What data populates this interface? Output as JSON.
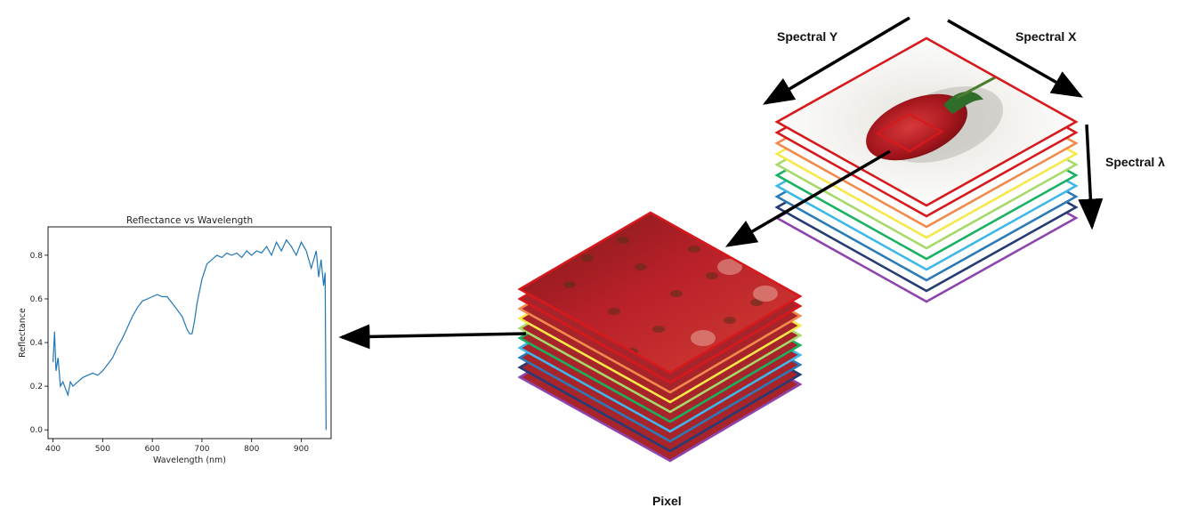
{
  "labels": {
    "spectral_y": "Spectral Y",
    "spectral_x": "Spectral X",
    "spectral_lambda": "Spectral λ",
    "pixel": "Pixel"
  },
  "colors": {
    "band_layers": [
      "#d7191c",
      "#d7191c",
      "#f28a4b",
      "#f7e84a",
      "#a6d96a",
      "#1ab163",
      "#3fb7e8",
      "#2c7bb6",
      "#253b73",
      "#8e44ad"
    ],
    "arrow": "#000000",
    "plot_line": "#1f77b4"
  },
  "chart_data": {
    "type": "line",
    "title": "Reflectance vs Wavelength",
    "xlabel": "Wavelength (nm)",
    "ylabel": "Reflectance",
    "xlim": [
      390,
      960
    ],
    "ylim": [
      -0.04,
      0.93
    ],
    "xticks": [
      400,
      500,
      600,
      700,
      800,
      900
    ],
    "yticks": [
      0.0,
      0.2,
      0.4,
      0.6,
      0.8
    ],
    "ytick_labels": [
      "0.0",
      "0.2",
      "0.4",
      "0.6",
      "0.8"
    ],
    "series": [
      {
        "x": [
          400,
          403,
          406,
          410,
          415,
          420,
          425,
          430,
          435,
          440,
          450,
          460,
          470,
          480,
          490,
          500,
          510,
          520,
          530,
          540,
          550,
          560,
          570,
          580,
          590,
          600,
          610,
          620,
          630,
          640,
          650,
          660,
          670,
          675,
          680,
          685,
          690,
          700,
          710,
          720,
          730,
          740,
          750,
          760,
          770,
          780,
          790,
          800,
          810,
          820,
          830,
          840,
          850,
          860,
          870,
          880,
          890,
          900,
          910,
          920,
          930,
          935,
          940,
          945,
          948,
          950
        ],
        "y": [
          0.31,
          0.45,
          0.27,
          0.33,
          0.2,
          0.22,
          0.19,
          0.16,
          0.22,
          0.2,
          0.22,
          0.24,
          0.25,
          0.26,
          0.25,
          0.27,
          0.3,
          0.33,
          0.38,
          0.42,
          0.47,
          0.52,
          0.56,
          0.59,
          0.6,
          0.61,
          0.62,
          0.61,
          0.61,
          0.58,
          0.55,
          0.52,
          0.46,
          0.44,
          0.44,
          0.5,
          0.58,
          0.69,
          0.76,
          0.78,
          0.8,
          0.79,
          0.81,
          0.8,
          0.81,
          0.79,
          0.82,
          0.8,
          0.82,
          0.81,
          0.84,
          0.8,
          0.86,
          0.82,
          0.87,
          0.84,
          0.8,
          0.86,
          0.82,
          0.74,
          0.82,
          0.7,
          0.78,
          0.66,
          0.72,
          0.0
        ]
      }
    ]
  }
}
